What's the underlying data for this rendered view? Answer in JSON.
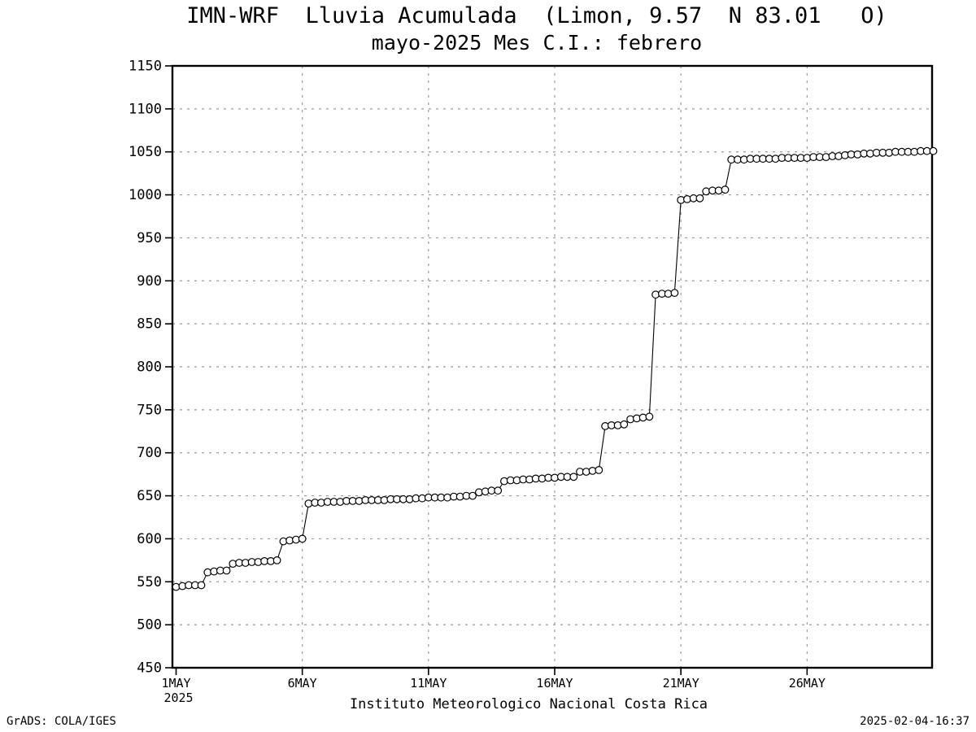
{
  "credit": "GrADS: COLA/IGES",
  "timestamp": "2025-02-04-16:37",
  "chart_data": {
    "type": "line",
    "title": "IMN-WRF  Lluvia Acumulada  (Limon, 9.57  N 83.01   O)",
    "subtitle": "mayo-2025 Mes C.I.: febrero",
    "xlabel": "Instituto Meteorologico Nacional Costa Rica",
    "ylabel": "",
    "series_name": "lluvia-acumulada-mm",
    "ylim": [
      450,
      1150
    ],
    "yticks": [
      {
        "value": 450,
        "label": "450"
      },
      {
        "value": 500,
        "label": "500"
      },
      {
        "value": 550,
        "label": "550"
      },
      {
        "value": 600,
        "label": "600"
      },
      {
        "value": 650,
        "label": "650"
      },
      {
        "value": 700,
        "label": "700"
      },
      {
        "value": 750,
        "label": "750"
      },
      {
        "value": 800,
        "label": "800"
      },
      {
        "value": 850,
        "label": "850"
      },
      {
        "value": 900,
        "label": "900"
      },
      {
        "value": 950,
        "label": "950"
      },
      {
        "value": 1000,
        "label": "1000"
      },
      {
        "value": 1050,
        "label": "1050"
      },
      {
        "value": 1100,
        "label": "1100"
      },
      {
        "value": 1150,
        "label": "1150"
      }
    ],
    "xlim_days": [
      0,
      30
    ],
    "xticks": [
      {
        "day": 0,
        "label": "1MAY",
        "sublabel": "2025"
      },
      {
        "day": 5,
        "label": "6MAY"
      },
      {
        "day": 10,
        "label": "11MAY"
      },
      {
        "day": 15,
        "label": "16MAY"
      },
      {
        "day": 20,
        "label": "21MAY"
      },
      {
        "day": 25,
        "label": "26MAY"
      }
    ],
    "points_per_day": 4,
    "grid": "dotted",
    "legend_position": "none",
    "marker": "open-circle",
    "colors": {
      "line": "#000000",
      "marker_fill": "#ffffff",
      "marker_stroke": "#000000",
      "grid": "#9a9a9a",
      "frame": "#000000",
      "background": "#ffffff"
    },
    "values": [
      544,
      545,
      546,
      546,
      546,
      561,
      562,
      563,
      563,
      571,
      572,
      572,
      573,
      573,
      574,
      574,
      575,
      597,
      598,
      599,
      600,
      641,
      642,
      642,
      643,
      643,
      643,
      644,
      644,
      644,
      645,
      645,
      645,
      645,
      646,
      646,
      646,
      646,
      647,
      647,
      648,
      648,
      648,
      648,
      649,
      649,
      650,
      650,
      654,
      655,
      656,
      656,
      667,
      668,
      668,
      669,
      669,
      670,
      670,
      671,
      671,
      672,
      672,
      672,
      678,
      678,
      679,
      680,
      731,
      732,
      732,
      733,
      739,
      740,
      741,
      742,
      884,
      885,
      885,
      886,
      994,
      995,
      996,
      996,
      1004,
      1005,
      1005,
      1006,
      1041,
      1041,
      1041,
      1042,
      1042,
      1042,
      1042,
      1042,
      1043,
      1043,
      1043,
      1043,
      1043,
      1044,
      1044,
      1044,
      1045,
      1045,
      1046,
      1047,
      1047,
      1048,
      1048,
      1049,
      1049,
      1049,
      1050,
      1050,
      1050,
      1050,
      1051,
      1051,
      1051
    ]
  }
}
